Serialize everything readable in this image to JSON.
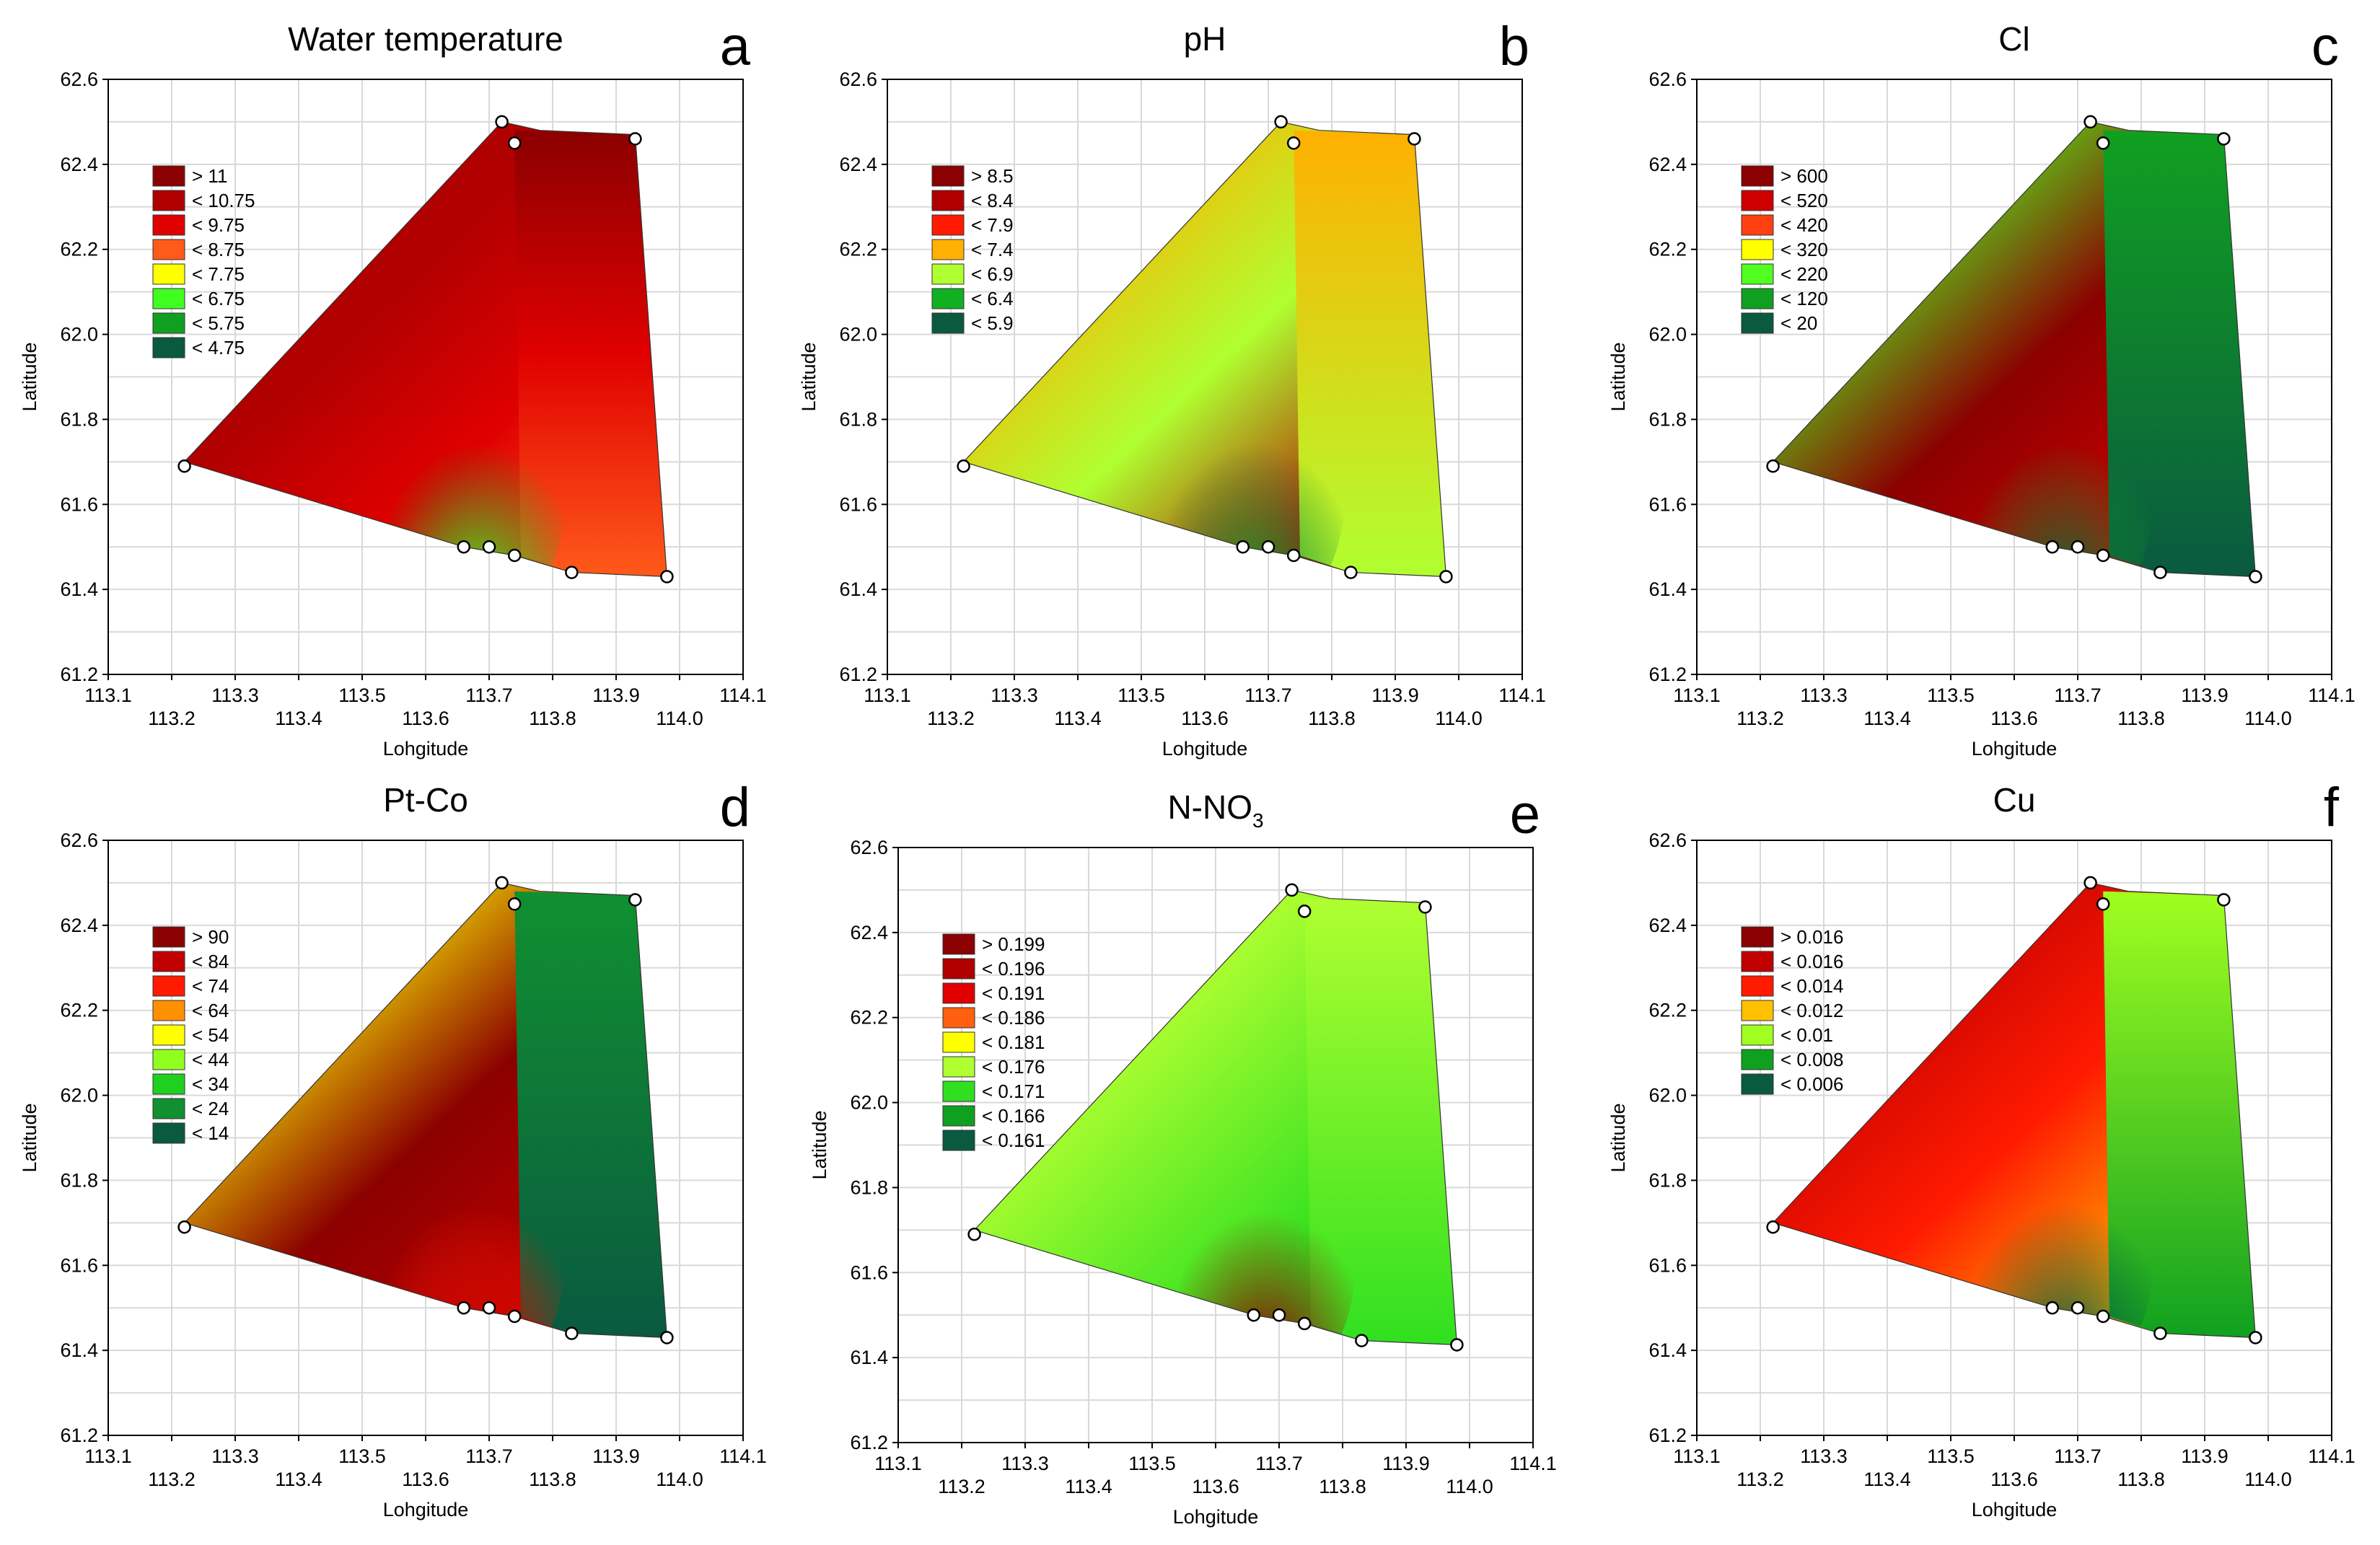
{
  "figure": {
    "panels": [
      {
        "letter": "a",
        "title": "Water temperature",
        "title_sub": "",
        "legend": [
          {
            "label": "> 11",
            "color": "#8b0000"
          },
          {
            "label": "< 10.75",
            "color": "#b00000"
          },
          {
            "label": "< 9.75",
            "color": "#e00000"
          },
          {
            "label": "< 8.75",
            "color": "#ff5a1a"
          },
          {
            "label": "< 7.75",
            "color": "#ffff00"
          },
          {
            "label": "< 6.75",
            "color": "#40ff20"
          },
          {
            "label": "< 5.75",
            "color": "#10a020"
          },
          {
            "label": "< 4.75",
            "color": "#0a5a40"
          }
        ]
      },
      {
        "letter": "b",
        "title": "pH",
        "title_sub": "",
        "legend": [
          {
            "label": "> 8.5",
            "color": "#8b0000"
          },
          {
            "label": "< 8.4",
            "color": "#b00000"
          },
          {
            "label": "< 7.9",
            "color": "#ff1a00"
          },
          {
            "label": "< 7.4",
            "color": "#ffb000"
          },
          {
            "label": "< 6.9",
            "color": "#b0ff30"
          },
          {
            "label": "< 6.4",
            "color": "#10b020"
          },
          {
            "label": "< 5.9",
            "color": "#0a5a40"
          }
        ]
      },
      {
        "letter": "c",
        "title": "Cl",
        "title_sub": "",
        "legend": [
          {
            "label": "> 600",
            "color": "#8b0000"
          },
          {
            "label": "< 520",
            "color": "#d00000"
          },
          {
            "label": "< 420",
            "color": "#ff4010"
          },
          {
            "label": "< 320",
            "color": "#ffff00"
          },
          {
            "label": "< 220",
            "color": "#50ff20"
          },
          {
            "label": "< 120",
            "color": "#10a020"
          },
          {
            "label": "< 20",
            "color": "#0a5a40"
          }
        ]
      },
      {
        "letter": "d",
        "title": "Pt-Co",
        "title_sub": "",
        "legend": [
          {
            "label": "> 90",
            "color": "#8b0000"
          },
          {
            "label": "< 84",
            "color": "#c00000"
          },
          {
            "label": "< 74",
            "color": "#ff1a00"
          },
          {
            "label": "< 64",
            "color": "#ff9000"
          },
          {
            "label": "< 54",
            "color": "#ffff00"
          },
          {
            "label": "< 44",
            "color": "#90ff20"
          },
          {
            "label": "< 34",
            "color": "#20d020"
          },
          {
            "label": "< 24",
            "color": "#109030"
          },
          {
            "label": "< 14",
            "color": "#0a5a40"
          }
        ]
      },
      {
        "letter": "e",
        "title": "N-NO",
        "title_sub": "3",
        "legend": [
          {
            "label": "> 0.199",
            "color": "#8b0000"
          },
          {
            "label": "< 0.196",
            "color": "#b00000"
          },
          {
            "label": "< 0.191",
            "color": "#e00000"
          },
          {
            "label": "< 0.186",
            "color": "#ff6010"
          },
          {
            "label": "< 0.181",
            "color": "#ffff00"
          },
          {
            "label": "< 0.176",
            "color": "#b0ff30"
          },
          {
            "label": "< 0.171",
            "color": "#30e020"
          },
          {
            "label": "< 0.166",
            "color": "#10a020"
          },
          {
            "label": "< 0.161",
            "color": "#0a5a40"
          }
        ]
      },
      {
        "letter": "f",
        "title": "Cu",
        "title_sub": "",
        "legend": [
          {
            "label": "> 0.016",
            "color": "#8b0000"
          },
          {
            "label": "< 0.016",
            "color": "#c00000"
          },
          {
            "label": "< 0.014",
            "color": "#ff1a00"
          },
          {
            "label": "< 0.012",
            "color": "#ffc000"
          },
          {
            "label": "< 0.01",
            "color": "#a0ff20"
          },
          {
            "label": "< 0.008",
            "color": "#10a020"
          },
          {
            "label": "< 0.006",
            "color": "#0a5a40"
          }
        ]
      }
    ]
  },
  "chart_data": {
    "type": "contour",
    "xlabel": "Lohgitude",
    "ylabel": "Latitude",
    "xlim": [
      113.1,
      114.1
    ],
    "ylim": [
      61.2,
      62.6
    ],
    "x_ticks_upper": [
      "113.1",
      "113.3",
      "113.5",
      "113.7",
      "113.9",
      "114.1"
    ],
    "x_ticks_lower": [
      "113.2",
      "113.4",
      "113.6",
      "113.8",
      "114.0"
    ],
    "y_ticks": [
      "61.2",
      "61.4",
      "61.6",
      "61.8",
      "62.0",
      "62.2",
      "62.4",
      "62.6"
    ],
    "sample_points": [
      {
        "lon": 113.22,
        "lat": 61.69
      },
      {
        "lon": 113.72,
        "lat": 62.5
      },
      {
        "lon": 113.74,
        "lat": 62.45
      },
      {
        "lon": 113.93,
        "lat": 62.46
      },
      {
        "lon": 113.98,
        "lat": 61.43
      },
      {
        "lon": 113.83,
        "lat": 61.44
      },
      {
        "lon": 113.74,
        "lat": 61.48
      },
      {
        "lon": 113.7,
        "lat": 61.5
      },
      {
        "lon": 113.66,
        "lat": 61.5
      }
    ],
    "hull": [
      {
        "lon": 113.22,
        "lat": 61.7
      },
      {
        "lon": 113.72,
        "lat": 62.5
      },
      {
        "lon": 113.78,
        "lat": 62.48
      },
      {
        "lon": 113.93,
        "lat": 62.47
      },
      {
        "lon": 113.98,
        "lat": 61.43
      },
      {
        "lon": 113.83,
        "lat": 61.44
      },
      {
        "lon": 113.74,
        "lat": 61.48
      },
      {
        "lon": 113.66,
        "lat": 61.5
      }
    ]
  }
}
